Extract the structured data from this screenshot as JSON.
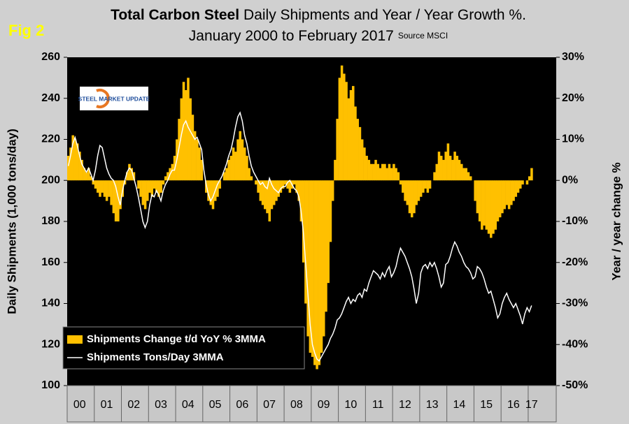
{
  "chart_data": {
    "type": "combo",
    "fig_label": "Fig 2",
    "title_bold": "Total Carbon Steel",
    "title": "Daily Shipments and Year / Year Growth %.",
    "subtitle": "January 2000 to February 2017",
    "source": "Source MSCI",
    "logo_text": "STEEL MARKET UPDATE",
    "y_label": "Daily Shipments (1,000 tons/day)",
    "y2_label": "Year / year change %",
    "ylim": [
      100,
      260
    ],
    "yticks": [
      100,
      120,
      140,
      160,
      180,
      200,
      220,
      240,
      260
    ],
    "y2lim": [
      -50,
      30
    ],
    "y2ticks": [
      {
        "value": -50,
        "label": "-50%"
      },
      {
        "value": -40,
        "label": "-40%"
      },
      {
        "value": -30,
        "label": "-30%"
      },
      {
        "value": -20,
        "label": "-20%"
      },
      {
        "value": -10,
        "label": "-10%"
      },
      {
        "value": 0,
        "label": "0%"
      },
      {
        "value": 10,
        "label": "10%"
      },
      {
        "value": 20,
        "label": "20%"
      },
      {
        "value": 30,
        "label": "30%"
      }
    ],
    "categories": [
      null,
      null,
      null,
      null,
      null,
      "00",
      null,
      null,
      null,
      null,
      null,
      null,
      null,
      null,
      null,
      null,
      null,
      "01",
      null,
      null,
      null,
      null,
      null,
      null,
      null,
      null,
      null,
      null,
      null,
      "02",
      null,
      null,
      null,
      null,
      null,
      null,
      null,
      null,
      null,
      null,
      null,
      "03",
      null,
      null,
      null,
      null,
      null,
      null,
      null,
      null,
      null,
      null,
      null,
      "04",
      null,
      null,
      null,
      null,
      null,
      null,
      null,
      null,
      null,
      null,
      null,
      "05",
      null,
      null,
      null,
      null,
      null,
      null,
      null,
      null,
      null,
      null,
      null,
      "06",
      null,
      null,
      null,
      null,
      null,
      null,
      null,
      null,
      null,
      null,
      null,
      "07",
      null,
      null,
      null,
      null,
      null,
      null,
      null,
      null,
      null,
      null,
      null,
      "08",
      null,
      null,
      null,
      null,
      null,
      null,
      null,
      null,
      null,
      null,
      null,
      "09",
      null,
      null,
      null,
      null,
      null,
      null,
      null,
      null,
      null,
      null,
      null,
      "10",
      null,
      null,
      null,
      null,
      null,
      null,
      null,
      null,
      null,
      null,
      null,
      "11",
      null,
      null,
      null,
      null,
      null,
      null,
      null,
      null,
      null,
      null,
      null,
      "12",
      null,
      null,
      null,
      null,
      null,
      null,
      null,
      null,
      null,
      null,
      null,
      "13",
      null,
      null,
      null,
      null,
      null,
      null,
      null,
      null,
      null,
      null,
      null,
      "14",
      null,
      null,
      null,
      null,
      null,
      null,
      null,
      null,
      null,
      null,
      null,
      "15",
      null,
      null,
      null,
      null,
      null,
      null,
      null,
      null,
      null,
      null,
      null,
      "16",
      null,
      null,
      null,
      null,
      null,
      null,
      null,
      "17"
    ],
    "series": [
      {
        "name": "Shipments Change t/d YoY % 3MMA",
        "type": "bar",
        "axis": "y2",
        "color": "#ffc000",
        "values": [
          6,
          8,
          11,
          10,
          9,
          7,
          5,
          3,
          2,
          3,
          1,
          -1,
          -2,
          -3,
          -4,
          -3,
          -4,
          -5,
          -4,
          -6,
          -8,
          -10,
          -10,
          -7,
          -4,
          -1,
          2,
          4,
          3,
          2,
          0,
          -2,
          -4,
          -6,
          -7,
          -5,
          -3,
          -4,
          -2,
          -3,
          -4,
          -3,
          -1,
          1,
          2,
          3,
          4,
          6,
          10,
          15,
          20,
          24,
          22,
          25,
          20,
          16,
          12,
          10,
          8,
          5,
          0,
          -3,
          -5,
          -6,
          -7,
          -5,
          -4,
          -2,
          0,
          2,
          3,
          5,
          6,
          8,
          7,
          10,
          12,
          10,
          8,
          6,
          3,
          1,
          0,
          -1,
          -3,
          -5,
          -6,
          -7,
          -8,
          -10,
          -7,
          -6,
          -5,
          -4,
          -3,
          -2,
          -1,
          -2,
          -3,
          -2,
          -1,
          -3,
          -5,
          -10,
          -20,
          -30,
          -38,
          -42,
          -43,
          -45,
          -46,
          -45,
          -42,
          -38,
          -32,
          -25,
          -15,
          -5,
          5,
          15,
          25,
          28,
          26,
          24,
          20,
          22,
          23,
          18,
          15,
          13,
          10,
          8,
          6,
          5,
          4,
          4,
          5,
          4,
          3,
          4,
          4,
          3,
          4,
          3,
          4,
          3,
          2,
          -1,
          -3,
          -5,
          -6,
          -8,
          -9,
          -8,
          -6,
          -5,
          -4,
          -3,
          -2,
          -3,
          -2,
          0,
          2,
          4,
          7,
          6,
          5,
          7,
          9,
          6,
          5,
          7,
          6,
          5,
          4,
          3,
          3,
          2,
          1,
          0,
          -5,
          -8,
          -10,
          -12,
          -11,
          -12,
          -13,
          -14,
          -13,
          -12,
          -10,
          -9,
          -8,
          -7,
          -6,
          -7,
          -6,
          -5,
          -4,
          -3,
          -2,
          -1,
          0,
          -1,
          1,
          3
        ]
      },
      {
        "name": "Shipments Tons/Day 3MMA",
        "type": "line",
        "axis": "y",
        "color": "#ffffff",
        "values": [
          207,
          212,
          218,
          221,
          217,
          212,
          208,
          206,
          204,
          206,
          203,
          200,
          205,
          212,
          217,
          216,
          211,
          206,
          203,
          201,
          200,
          197,
          192,
          188,
          195,
          200,
          204,
          206,
          205,
          201,
          197,
          192,
          186,
          180,
          177,
          180,
          188,
          193,
          192,
          195,
          193,
          190,
          195,
          198,
          200,
          203,
          205,
          205,
          210,
          216,
          222,
          227,
          229,
          226,
          224,
          222,
          220,
          221,
          218,
          215,
          205,
          198,
          193,
          190,
          192,
          195,
          198,
          200,
          202,
          205,
          208,
          212,
          215,
          220,
          226,
          231,
          233,
          229,
          222,
          218,
          212,
          207,
          204,
          202,
          200,
          198,
          199,
          197,
          196,
          201,
          198,
          196,
          195,
          194,
          196,
          197,
          197,
          199,
          200,
          198,
          196,
          195,
          192,
          185,
          175,
          160,
          145,
          130,
          120,
          116,
          113,
          112,
          114,
          116,
          118,
          120,
          123,
          125,
          128,
          132,
          133,
          135,
          138,
          141,
          143,
          140,
          142,
          141,
          144,
          145,
          143,
          147,
          146,
          150,
          153,
          156,
          155,
          154,
          152,
          155,
          153,
          156,
          158,
          153,
          155,
          158,
          163,
          167,
          165,
          163,
          160,
          157,
          153,
          147,
          140,
          145,
          155,
          158,
          159,
          157,
          160,
          158,
          160,
          157,
          153,
          148,
          150,
          159,
          160,
          163,
          167,
          170,
          168,
          165,
          163,
          160,
          158,
          157,
          155,
          152,
          153,
          158,
          157,
          155,
          152,
          148,
          145,
          146,
          142,
          138,
          133,
          135,
          140,
          143,
          145,
          142,
          140,
          138,
          140,
          137,
          134,
          130,
          135,
          138,
          136,
          139
        ]
      }
    ],
    "legend_position": "lower left"
  }
}
